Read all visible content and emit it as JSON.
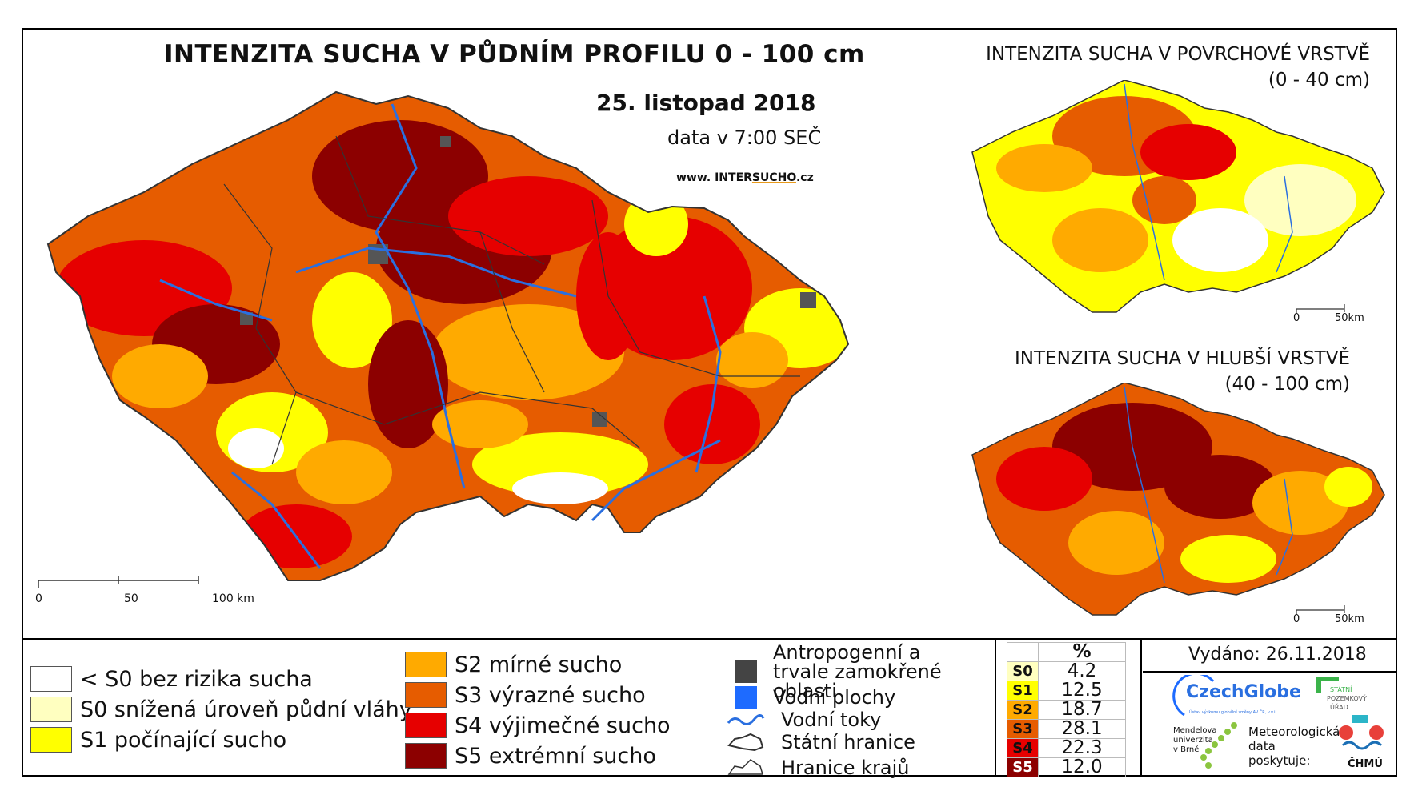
{
  "title": "INTENZITA SUCHA V PŮDNÍM PROFILU 0 - 100 cm",
  "date": "25. listopad 2018",
  "data_time": "data v 7:00 SEČ",
  "website": {
    "prefix": "www. INTER",
    "highlight": "SUCHO",
    "suffix": ".cz"
  },
  "inset_surface": {
    "title": "INTENZITA SUCHA V POVRCHOVÉ VRSTVĚ",
    "depth": "(0 - 40 cm)",
    "scale": [
      "0",
      "50km"
    ]
  },
  "inset_deep": {
    "title": "INTENZITA SUCHA V HLUBŠÍ VRSTVĚ",
    "depth": "(40 - 100 cm)",
    "scale": [
      "0",
      "50km"
    ]
  },
  "main_scale": [
    "0",
    "50",
    "100 km"
  ],
  "legend_classes": [
    {
      "label": "< S0 bez rizika sucha",
      "color": "#ffffff"
    },
    {
      "label": "S0 snížená úroveň půdní vláhy",
      "color": "#ffffc0"
    },
    {
      "label": "S1 počínající sucho",
      "color": "#ffff00"
    },
    {
      "label": "S2 mírné sucho",
      "color": "#ffaa00"
    },
    {
      "label": "S3 výrazné sucho",
      "color": "#e65c00"
    },
    {
      "label": "S4 výjimečné sucho",
      "color": "#e60000"
    },
    {
      "label": "S5 extrémní sucho",
      "color": "#8c0000"
    }
  ],
  "legend_symbols": [
    {
      "label": "Antropogenní a trvale zamokřené oblasti",
      "icon": "dark-square"
    },
    {
      "label": "Vodní plochy",
      "icon": "blue-square"
    },
    {
      "label": "Vodní toky",
      "icon": "river-line"
    },
    {
      "label": "Státní hranice",
      "icon": "state-border"
    },
    {
      "label": "Hranice krajů",
      "icon": "region-border"
    }
  ],
  "percentages": {
    "header": "%",
    "rows": [
      {
        "code": "S0",
        "value": "4.2",
        "color": "#ffffc0"
      },
      {
        "code": "S1",
        "value": "12.5",
        "color": "#ffff00"
      },
      {
        "code": "S2",
        "value": "18.7",
        "color": "#ffaa00"
      },
      {
        "code": "S3",
        "value": "28.1",
        "color": "#e65c00"
      },
      {
        "code": "S4",
        "value": "22.3",
        "color": "#e60000"
      },
      {
        "code": "S5",
        "value": "12.0",
        "color": "#8c0000"
      }
    ]
  },
  "issued": "Vydáno: 26.11.2018",
  "logos": {
    "czechglobe": "CzechGlobe",
    "czechglobe_sub": "Ústav výzkumu globální změny AV ČR, v.v.i.",
    "spu": [
      "STÁTNÍ",
      "POZEMKOVÝ",
      "ÚŘAD"
    ],
    "mendel": [
      "Mendelova",
      "univerzita",
      "v Brně"
    ],
    "meteo": [
      "Meteorologická",
      "data",
      "poskytuje:"
    ],
    "chmu": "ČHMÚ"
  }
}
